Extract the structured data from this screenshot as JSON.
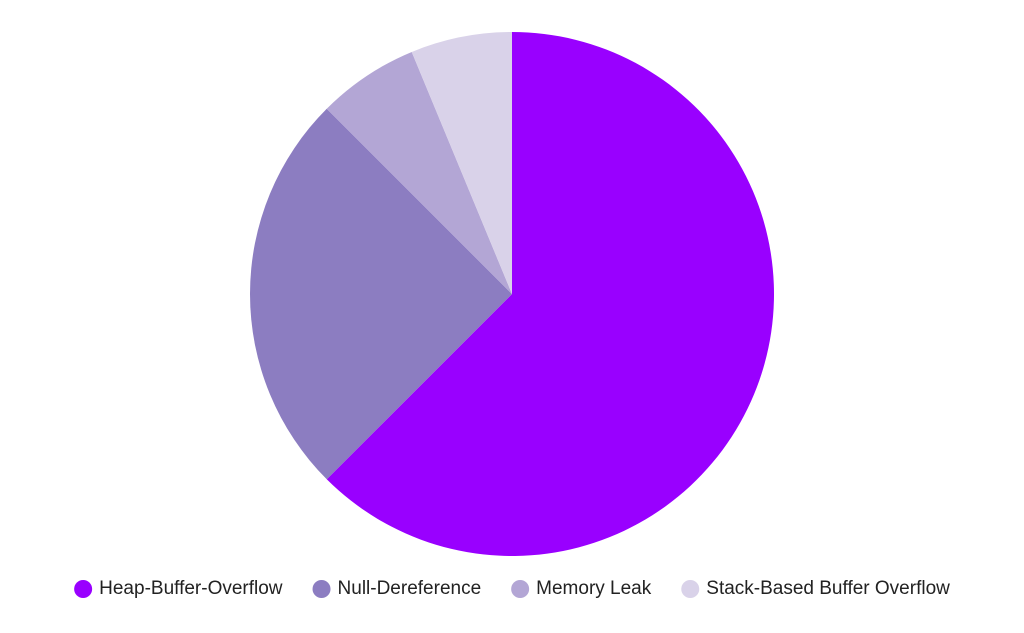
{
  "chart_data": {
    "type": "pie",
    "categories": [
      "Heap-Buffer-Overflow",
      "Null-Dereference",
      "Memory Leak",
      "Stack-Based Buffer Overflow"
    ],
    "values": [
      62.5,
      25,
      6.25,
      6.25
    ],
    "colors": [
      "#9900ff",
      "#8c7dc1",
      "#b3a6d5",
      "#d9d2e9"
    ],
    "legend": "bottom"
  }
}
